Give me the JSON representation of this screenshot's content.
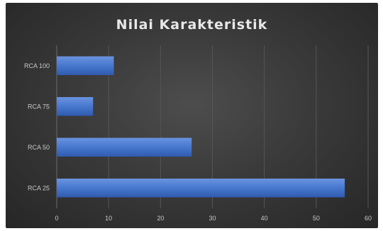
{
  "chart_data": {
    "type": "bar",
    "orientation": "horizontal",
    "title": "Nilai Karakteristik",
    "xlabel": "",
    "ylabel": "",
    "categories": [
      "RCA 25",
      "RCA 50",
      "RCA 75",
      "RCA 100"
    ],
    "values": [
      55.5,
      26,
      7,
      11
    ],
    "xlim": [
      0,
      60
    ],
    "xticks": [
      0,
      10,
      20,
      30,
      40,
      50,
      60
    ],
    "grid": "vertical",
    "legend": "none",
    "colors": {
      "bar": "#4472c4",
      "bar_highlight": "#6a93e0",
      "background": "#3a3a3a",
      "grid": "#555555",
      "text": "#c8c8c8",
      "title": "#e8e8e8"
    }
  }
}
